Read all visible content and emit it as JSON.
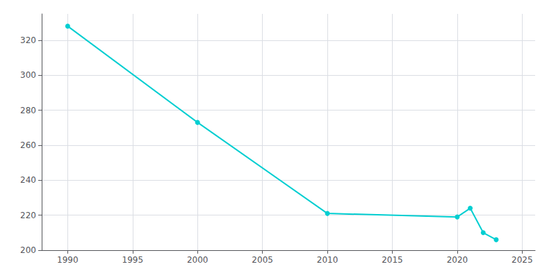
{
  "chart_data": {
    "type": "line",
    "x": [
      1990,
      2000,
      2010,
      2020,
      2021,
      2022,
      2023
    ],
    "values": [
      328,
      273,
      221,
      219,
      224,
      210,
      206
    ],
    "color": "#00CED1",
    "marker": "circle",
    "xlim": [
      1988,
      2026
    ],
    "ylim": [
      200,
      335
    ],
    "xticks": [
      1990,
      1995,
      2000,
      2005,
      2010,
      2015,
      2020,
      2025
    ],
    "yticks": [
      200,
      220,
      240,
      260,
      280,
      300,
      320
    ],
    "grid": true
  }
}
